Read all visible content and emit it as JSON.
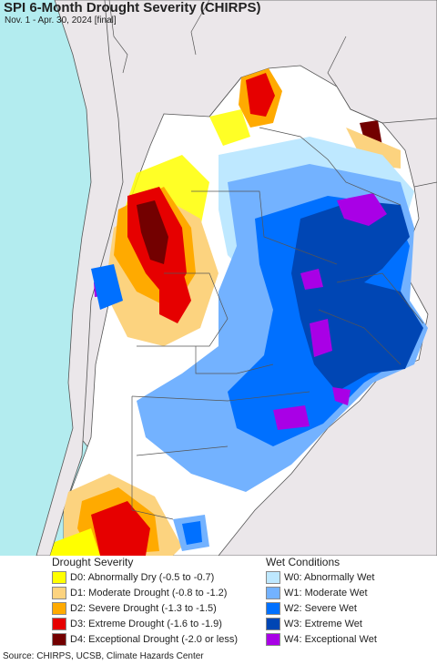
{
  "header": {
    "title": "SPI 6-Month Drought Severity (CHIRPS)",
    "subtitle": "Nov. 1 - Apr. 30, 2024 [final]"
  },
  "legend": {
    "drought_title": "Drought Severity",
    "wet_title": "Wet Conditions",
    "drought": [
      {
        "label": "D0: Abnormally Dry (-0.5 to -0.7)",
        "color": "#FFFF00"
      },
      {
        "label": "D1: Moderate Drought (-0.8 to -1.2)",
        "color": "#FCD37F"
      },
      {
        "label": "D2: Severe Drought (-1.3 to -1.5)",
        "color": "#FFAA00"
      },
      {
        "label": "D3: Extreme Drought (-1.6 to -1.9)",
        "color": "#E60000"
      },
      {
        "label": "D4: Exceptional Drought (-2.0 or less)",
        "color": "#730000"
      }
    ],
    "wet": [
      {
        "label": "W0: Abnormally Wet",
        "color": "#BEE8FF"
      },
      {
        "label": "W1: Moderate Wet",
        "color": "#73B2FF"
      },
      {
        "label": "W2: Severe Wet",
        "color": "#0070FF"
      },
      {
        "label": "W3: Extreme Wet",
        "color": "#0046B4"
      },
      {
        "label": "W4: Exceptional Wet",
        "color": "#A900E6"
      }
    ]
  },
  "source": "Source: CHIRPS, UCSB, Climate Hazards Center"
}
